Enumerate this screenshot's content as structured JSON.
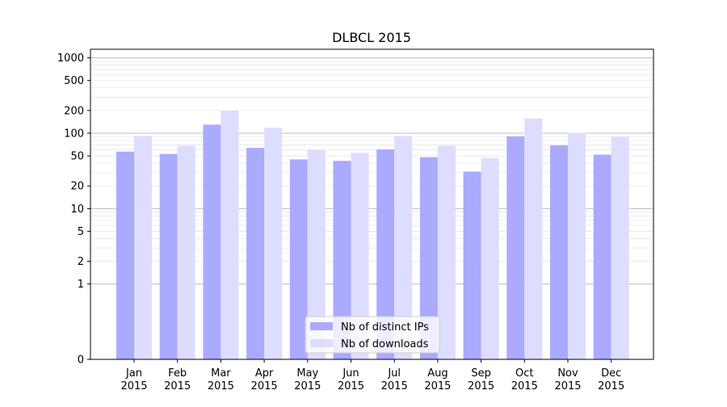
{
  "chart_data": {
    "type": "bar",
    "title": "DLBCL 2015",
    "xlabel": "",
    "ylabel": "",
    "y_scale": "symlog",
    "ylim": [
      0,
      1300
    ],
    "yticks": [
      0,
      1,
      2,
      5,
      10,
      20,
      50,
      100,
      200,
      500,
      1000
    ],
    "ytick_labels": [
      "0",
      "1",
      "2",
      "5",
      "10",
      "20",
      "50",
      "100",
      "200",
      "500",
      "1000"
    ],
    "categories": [
      "Jan\n2015",
      "Feb\n2015",
      "Mar\n2015",
      "Apr\n2015",
      "May\n2015",
      "Jun\n2015",
      "Jul\n2015",
      "Aug\n2015",
      "Sep\n2015",
      "Oct\n2015",
      "Nov\n2015",
      "Dec\n2015"
    ],
    "series": [
      {
        "name": "Nb of distinct IPs",
        "color": "#aaaaff",
        "values": [
          57,
          53,
          130,
          64,
          45,
          43,
          61,
          48,
          31,
          91,
          69,
          52
        ]
      },
      {
        "name": "Nb of downloads",
        "color": "#ddddff",
        "values": [
          92,
          68,
          200,
          118,
          60,
          55,
          92,
          68,
          47,
          157,
          101,
          90
        ]
      }
    ],
    "grid": true,
    "legend_position": "bottom-center"
  }
}
